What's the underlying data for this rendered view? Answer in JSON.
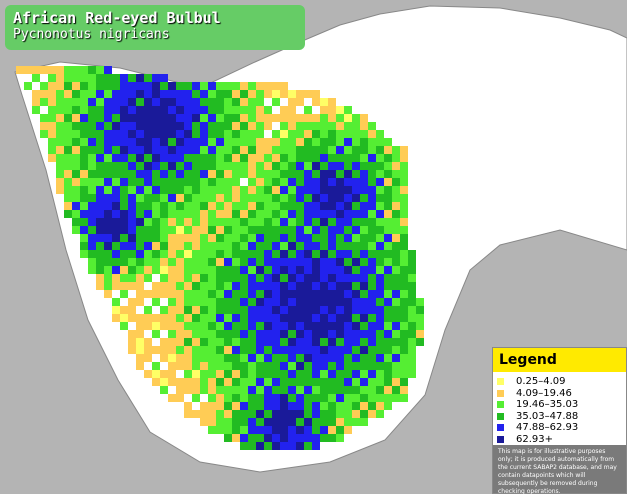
{
  "title": "African Red-eyed Bulbul",
  "subtitle": "Pycnonotus nigricans",
  "legend": {
    "title": "Legend",
    "items": [
      {
        "label": "0.25–4.09",
        "color": "#ffff66"
      },
      {
        "label": "4.09–19.46",
        "color": "#ffcc55"
      },
      {
        "label": "19.46–35.03",
        "color": "#55ee33"
      },
      {
        "label": "35.03–47.88",
        "color": "#22bb22"
      },
      {
        "label": "47.88–62.93",
        "color": "#2222ee"
      },
      {
        "label": "62.93+",
        "color": "#1a1a99"
      }
    ],
    "disclaimer": "This map is for illustrative purposes only; it is produced automatically from the current SABAP2 database, and may contain datapoints which will subsequently be removed during checking operations."
  }
}
